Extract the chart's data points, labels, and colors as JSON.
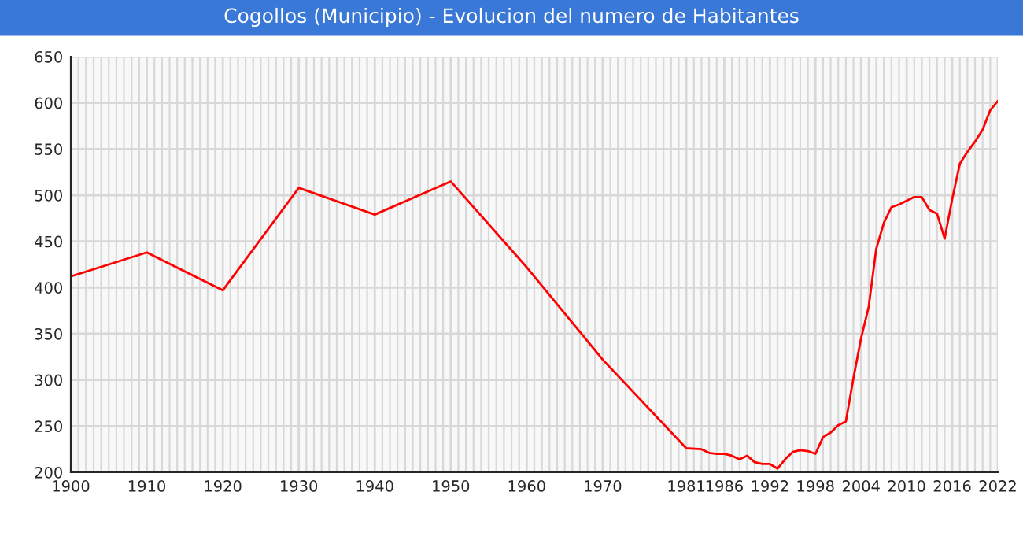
{
  "chart_data": {
    "type": "line",
    "title": "Cogollos (Municipio) - Evolucion del numero de Habitantes",
    "x": [
      1900,
      1910,
      1920,
      1930,
      1940,
      1950,
      1960,
      1970,
      1981,
      1983,
      1984,
      1985,
      1986,
      1987,
      1988,
      1989,
      1990,
      1991,
      1992,
      1993,
      1994,
      1995,
      1996,
      1997,
      1998,
      1999,
      2000,
      2001,
      2002,
      2003,
      2004,
      2005,
      2006,
      2007,
      2008,
      2009,
      2010,
      2011,
      2012,
      2013,
      2014,
      2015,
      2016,
      2017,
      2018,
      2019,
      2020,
      2021,
      2022
    ],
    "series": [
      {
        "color": "#ff0000",
        "values": [
          412,
          438,
          397,
          508,
          479,
          515,
          422,
          322,
          226,
          225,
          221,
          220,
          220,
          218,
          214,
          218,
          211,
          209,
          209,
          204,
          214,
          222,
          224,
          223,
          220,
          238,
          243,
          251,
          255,
          302,
          345,
          379,
          442,
          470,
          487,
          490,
          494,
          498,
          498,
          484,
          480,
          453,
          496,
          534,
          547,
          558,
          571,
          592,
          602
        ]
      }
    ],
    "xlim": [
      1900,
      2022
    ],
    "xticks": [
      1900,
      1910,
      1920,
      1930,
      1940,
      1950,
      1960,
      1970,
      1981,
      1986,
      1992,
      1998,
      2004,
      2010,
      2016,
      2022
    ],
    "ylim": [
      200,
      650
    ],
    "yticks": [
      200,
      250,
      300,
      350,
      400,
      450,
      500,
      550,
      600,
      650
    ],
    "grid": true,
    "marker": "none",
    "line_style": "solid",
    "legend": false
  }
}
